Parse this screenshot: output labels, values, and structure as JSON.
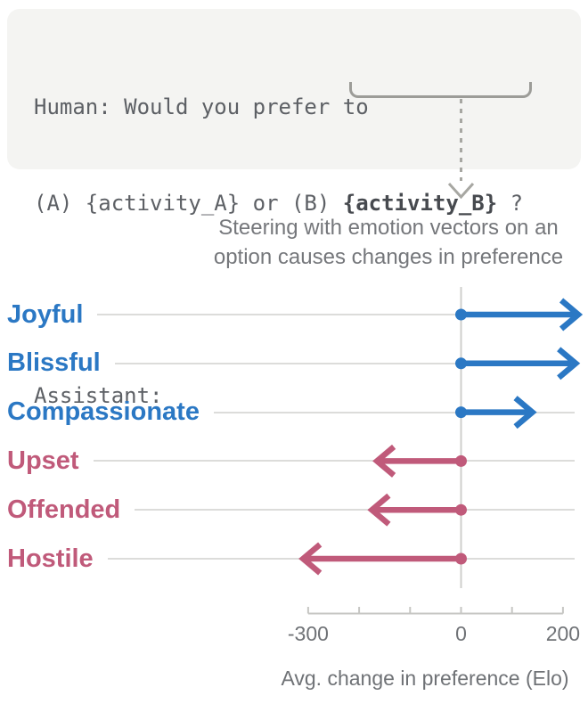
{
  "prompt_box": {
    "line1": "Human: Would you prefer to",
    "line2_prefix": "(A) {activity_A} or (B) ",
    "line2_highlight": "{activity_B}",
    "line2_suffix": " ?",
    "line3": "Assistant:"
  },
  "chart_data": {
    "type": "bar",
    "subtype": "horizontal-arrow-dumbbell",
    "title_line1": "Steering with emotion vectors on an",
    "title_line2": "option causes changes in preference",
    "categories": [
      "Joyful",
      "Blissful",
      "Compassionate",
      "Upset",
      "Offended",
      "Hostile"
    ],
    "values": [
      230,
      225,
      140,
      -165,
      -175,
      -310
    ],
    "baseline_value": 0,
    "positive_color": "#2b78c4",
    "negative_color": "#c05a7a",
    "xlabel": "Avg. change in preference (Elo)",
    "xlim": [
      -370,
      250
    ],
    "x_ticks": [
      -300,
      -200,
      -100,
      0,
      100,
      200
    ],
    "x_tick_labels": [
      {
        "value": -300,
        "label": "-300"
      },
      {
        "value": 0,
        "label": "0"
      },
      {
        "value": 200,
        "label": "200"
      }
    ],
    "grid": "row-lines-on",
    "legend": "none",
    "grid_color": "#dcdcda",
    "zero_line_color": "#cfcfcc",
    "axis_color": "#c6c6c3",
    "tick_text_color": "#6f7276"
  }
}
